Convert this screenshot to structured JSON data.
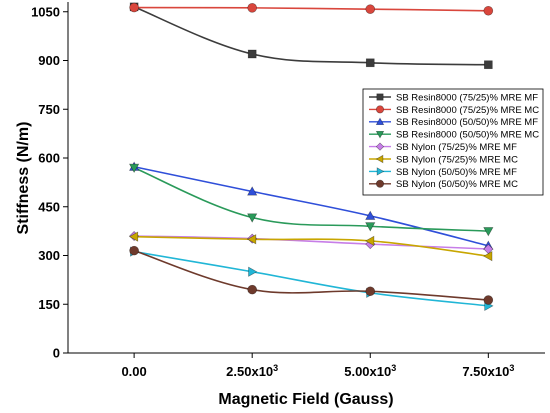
{
  "chart_data": {
    "type": "line",
    "xlabel": "Magnetic Field (Gauss)",
    "ylabel": "Stiffness (N/m)",
    "x": [
      0,
      2500,
      5000,
      7500
    ],
    "x_tick_labels": [
      "0.00",
      "2.50x10",
      "5.00x10",
      "7.50x10"
    ],
    "x_tick_exponent": "3",
    "xlim": [
      -1400,
      8700
    ],
    "ylim": [
      0,
      1080
    ],
    "y_ticks": [
      0,
      150,
      300,
      450,
      600,
      750,
      900,
      1050
    ],
    "grid": false,
    "legend_position": "right",
    "series": [
      {
        "name": "SB Resin8000 (75/25)% MRE MF",
        "color": "#3c3c3c",
        "marker": "square",
        "values": [
          1065,
          920,
          893,
          887
        ]
      },
      {
        "name": "SB Resin8000 (75/25)% MRE MC",
        "color": "#d9463c",
        "marker": "circle",
        "values": [
          1063,
          1062,
          1058,
          1053
        ]
      },
      {
        "name": "SB Resin8000 (50/50)% MRE MF",
        "color": "#2f4fd9",
        "marker": "triangle-up",
        "values": [
          573,
          497,
          422,
          330
        ]
      },
      {
        "name": "SB Resin8000 (50/50)% MRE MC",
        "color": "#2a9a5a",
        "marker": "triangle-down",
        "values": [
          570,
          417,
          390,
          375
        ]
      },
      {
        "name": "SB Nylon (75/25)% MRE MF",
        "color": "#c77ee8",
        "marker": "diamond",
        "values": [
          360,
          352,
          335,
          320
        ]
      },
      {
        "name": "SB Nylon (75/25)% MRE MC",
        "color": "#c8a600",
        "marker": "triangle-left",
        "values": [
          358,
          350,
          345,
          298
        ]
      },
      {
        "name": "SB Nylon (50/50)% MRE MF",
        "color": "#21b6d6",
        "marker": "triangle-right",
        "values": [
          312,
          250,
          185,
          145
        ]
      },
      {
        "name": "SB Nylon (50/50)% MRE MC",
        "color": "#6e3a2c",
        "marker": "circle",
        "values": [
          315,
          195,
          190,
          163
        ]
      }
    ]
  }
}
